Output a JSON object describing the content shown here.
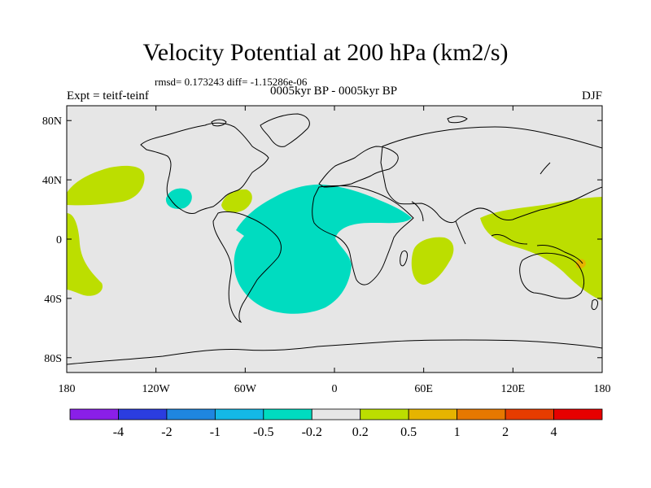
{
  "title": "Velocity Potential at 200 hPa (km2/s)",
  "stats": "rmsd= 0.173243 diff= -1.15286e-06",
  "experiment": "Expt = teitf-teinf",
  "period": "0005kyr BP - 0005kyr BP",
  "season": "DJF",
  "map": {
    "lat_ticks": [
      "80N",
      "40N",
      "0",
      "40S",
      "80S"
    ],
    "lon_ticks": [
      "180",
      "120W",
      "60W",
      "0",
      "60E",
      "120E",
      "180"
    ],
    "background_color": "#e6e6e6"
  },
  "colorbar": {
    "colors": [
      "#8a1fe8",
      "#2b3de0",
      "#1f86e0",
      "#14b8e6",
      "#00dcc0",
      "#e6e6e6",
      "#bcde00",
      "#e6b400",
      "#e67800",
      "#e63c00",
      "#e60000"
    ],
    "labels": [
      "-4",
      "-2",
      "-1",
      "-0.5",
      "-0.2",
      "0.2",
      "0.5",
      "1",
      "2",
      "4"
    ]
  },
  "anomaly_regions": [
    {
      "name": "north-pacific-positive",
      "category": "0.2 to 0.5",
      "color": "#bcde00"
    },
    {
      "name": "east-pacific-positive",
      "category": "0.2 to 0.5",
      "color": "#bcde00"
    },
    {
      "name": "caribbean-positive",
      "category": "0.2 to 0.5",
      "color": "#bcde00"
    },
    {
      "name": "mexico-negative",
      "category": "-0.5 to -0.2",
      "color": "#00dcc0"
    },
    {
      "name": "atlantic-africa-negative",
      "category": "-0.5 to -0.2",
      "color": "#00dcc0"
    },
    {
      "name": "indian-ocean-positive",
      "category": "0.2 to 0.5",
      "color": "#bcde00"
    },
    {
      "name": "maritime-continent-positive",
      "category": "0.2 to 0.5",
      "color": "#bcde00"
    },
    {
      "name": "new-guinea-peak",
      "category": "0.5 to 1",
      "color": "#e6b400"
    }
  ]
}
